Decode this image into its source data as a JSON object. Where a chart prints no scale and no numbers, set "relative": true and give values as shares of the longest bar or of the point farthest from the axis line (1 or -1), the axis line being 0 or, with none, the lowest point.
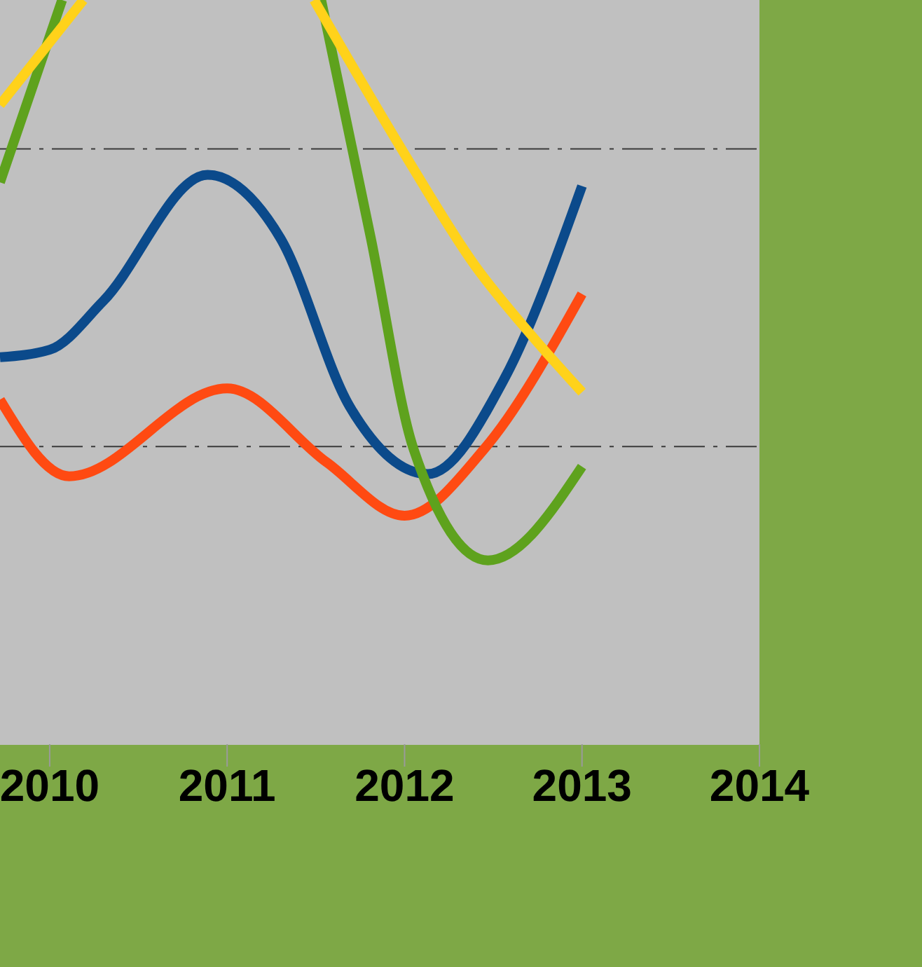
{
  "chart_data": {
    "type": "line",
    "relative": true,
    "xlim": [
      2009.72,
      2014
    ],
    "xticks": [
      2010,
      2011,
      2012,
      2013,
      2014
    ],
    "ref_lines": [
      {
        "axis": "y",
        "value": 0.4,
        "color": "#3a3a3a",
        "line_style": "dashdot"
      },
      {
        "axis": "y",
        "value": 0.8,
        "color": "#3a3a3a",
        "line_style": "dashdot"
      }
    ],
    "line_style": "solid",
    "marker": "none",
    "series": [
      {
        "color": "#0b4a8b",
        "x": [
          2009.72,
          2010,
          2010.3,
          2010.89,
          2011.3,
          2011.69,
          2012.13,
          2012.56,
          2013
        ],
        "values": [
          0.52,
          0.53,
          0.595,
          0.765,
          0.68,
          0.454,
          0.363,
          0.49,
          0.75
        ]
      },
      {
        "color": "#ff4a12",
        "x": [
          2009.72,
          2010.11,
          2011,
          2011.56,
          2012,
          2012.45,
          2013
        ],
        "values": [
          0.463,
          0.36,
          0.478,
          0.379,
          0.307,
          0.397,
          0.605
        ]
      },
      {
        "color": "#5ea21d",
        "x": [
          2009.72,
          2010.07,
          2010.8,
          2011.53,
          2011.81,
          2012.05,
          2012.47,
          2013
        ],
        "values": [
          0.755,
          1,
          null,
          1,
          0.68,
          0.397,
          0.247,
          0.373
        ]
      },
      {
        "color": "#ffd21a",
        "x": [
          2009.72,
          2010.19,
          2010.8,
          2011.49,
          2012,
          2012.4,
          2012.72,
          2013
        ],
        "values": [
          0.859,
          1,
          null,
          1,
          0.793,
          0.642,
          0.548,
          0.473
        ]
      }
    ]
  }
}
